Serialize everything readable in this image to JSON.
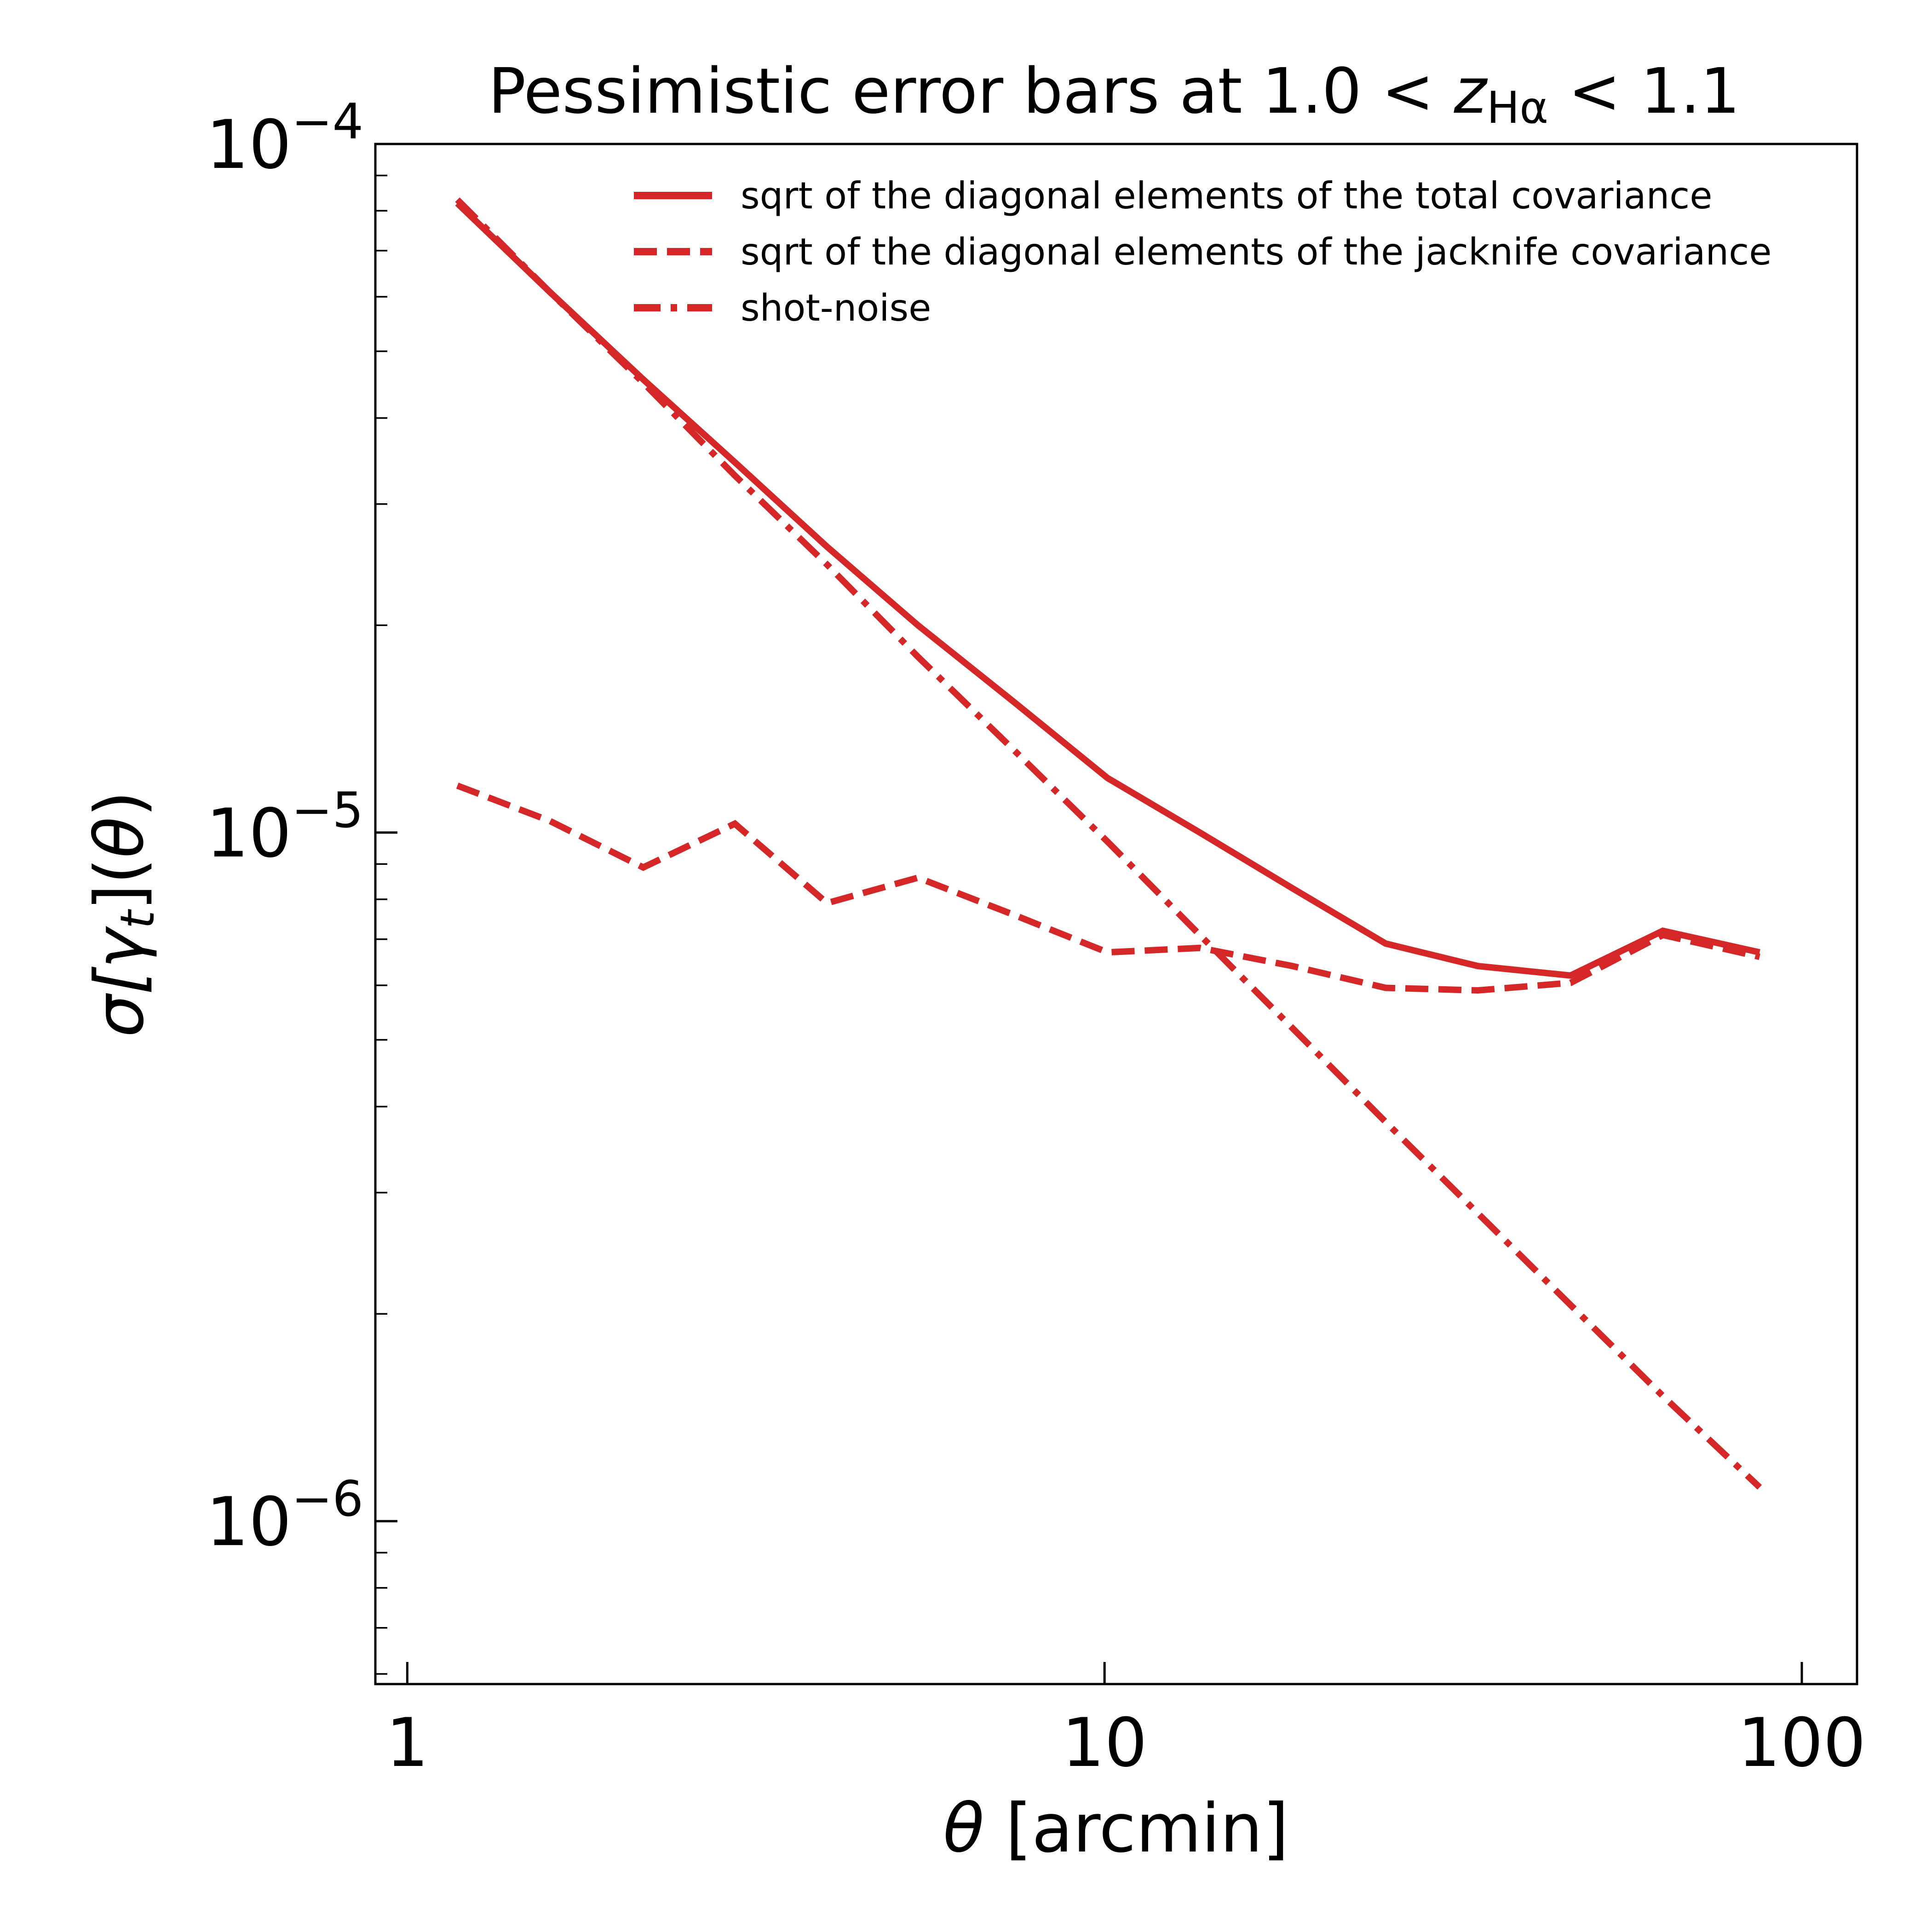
{
  "chart_data": {
    "type": "line",
    "title": {
      "prefix": "Pessimistic error bars at 1.0 < ",
      "var": "z",
      "subscript": "Hα",
      "suffix": " < 1.1"
    },
    "xlabel": {
      "symbol": "θ",
      "unit": " [arcmin]"
    },
    "ylabel": {
      "pre": "σ[",
      "gamma": "γ",
      "sub": "t",
      "post": "](",
      "theta": "θ",
      "close": ")"
    },
    "x_scale": "log",
    "y_scale": "log",
    "xlim": [
      0.9,
      120
    ],
    "ylim": [
      5.8e-07,
      0.0001
    ],
    "x_ticks": [
      {
        "value": 1,
        "label": "1"
      },
      {
        "value": 10,
        "label": "10"
      },
      {
        "value": 100,
        "label": "100"
      }
    ],
    "y_ticks": [
      {
        "value": 0.0001,
        "base": "10",
        "exp": "−4"
      },
      {
        "value": 1e-05,
        "base": "10",
        "exp": "−5"
      },
      {
        "value": 1e-06,
        "base": "10",
        "exp": "−6"
      }
    ],
    "grid": false,
    "legend_position": "top-right",
    "color": "#d62728",
    "series": [
      {
        "name": "sqrt of the diagonal elements of the total covariance",
        "style": "solid",
        "x": [
          1.18,
          1.6,
          2.18,
          2.95,
          4.0,
          5.4,
          7.4,
          10.1,
          13.7,
          18.6,
          25.3,
          34.3,
          46.6,
          63.2,
          87.0
        ],
        "y": [
          8.2e-05,
          6.1e-05,
          4.55e-05,
          3.45e-05,
          2.6e-05,
          2e-05,
          1.55e-05,
          1.2e-05,
          1e-05,
          8.3e-06,
          6.9e-06,
          6.4e-06,
          6.2e-06,
          7.2e-06,
          6.7e-06
        ]
      },
      {
        "name": "sqrt of the diagonal elements of the jacknife covariance",
        "style": "dashed",
        "x": [
          1.18,
          1.6,
          2.18,
          2.95,
          4.0,
          5.4,
          7.4,
          10.1,
          13.7,
          18.6,
          25.3,
          34.3,
          46.6,
          63.2,
          87.0
        ],
        "y": [
          1.17e-05,
          1.04e-05,
          8.9e-06,
          1.03e-05,
          7.9e-06,
          8.6e-06,
          7.6e-06,
          6.7e-06,
          6.8e-06,
          6.4e-06,
          5.95e-06,
          5.9e-06,
          6.05e-06,
          7.1e-06,
          6.6e-06
        ]
      },
      {
        "name": "shot-noise",
        "style": "dashdot",
        "x": [
          1.18,
          1.6,
          2.18,
          2.95,
          4.0,
          5.4,
          7.4,
          10.1,
          13.7,
          18.6,
          25.3,
          34.3,
          46.6,
          63.2,
          87.0
        ],
        "y": [
          8.3e-05,
          6.1e-05,
          4.5e-05,
          3.3e-05,
          2.45e-05,
          1.8e-05,
          1.32e-05,
          9.7e-06,
          7.1e-06,
          5.2e-06,
          3.8e-06,
          2.8e-06,
          2.06e-06,
          1.52e-06,
          1.12e-06
        ]
      }
    ]
  }
}
